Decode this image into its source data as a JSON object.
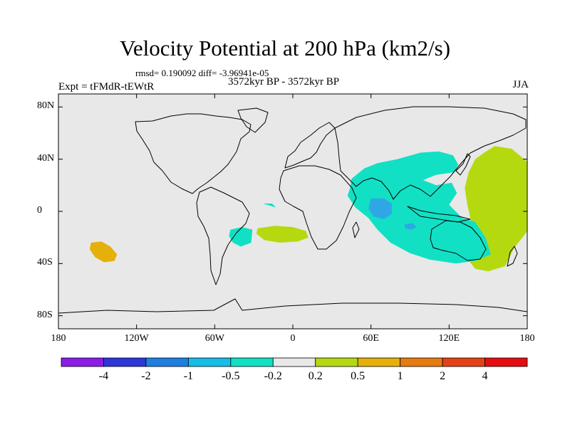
{
  "chart_data": {
    "type": "heatmap",
    "title": "Velocity Potential at 200 hPa (km2/s)",
    "stats_text": "rmsd= 0.190092 diff= -3.96941e-05",
    "period": "3572kyr BP - 3572kyr BP",
    "experiment": "Expt = tFMdR-tEWtR",
    "season": "JJA",
    "x_ticks": [
      "180",
      "120W",
      "60W",
      "0",
      "60E",
      "120E",
      "180"
    ],
    "x_tick_values": [
      -180,
      -120,
      -60,
      0,
      60,
      120,
      180
    ],
    "y_ticks": [
      "80N",
      "40N",
      "0",
      "40S",
      "80S"
    ],
    "y_tick_values": [
      80,
      40,
      0,
      -40,
      -80
    ],
    "xlim": [
      -180,
      180
    ],
    "ylim": [
      -90,
      90
    ],
    "colorbar": {
      "boundaries": [
        "-4",
        "-2",
        "-1",
        "-0.5",
        "-0.2",
        "0.2",
        "0.5",
        "1",
        "2",
        "4"
      ],
      "colors": [
        "#8b1de6",
        "#2e35d9",
        "#1f7fe0",
        "#16bde6",
        "#12e0c4",
        "#e8e8e8",
        "#b5d90f",
        "#e6b00a",
        "#e67b10",
        "#e64016",
        "#e60d10"
      ]
    },
    "regions": [
      {
        "name": "western-pacific-positive",
        "level": "0.2 to 0.5",
        "polygon": [
          [
            180,
            38
          ],
          [
            168,
            48
          ],
          [
            155,
            50
          ],
          [
            147,
            45
          ],
          [
            140,
            40
          ],
          [
            135,
            30
          ],
          [
            132,
            18
          ],
          [
            134,
            5
          ],
          [
            137,
            -8
          ],
          [
            135,
            -20
          ],
          [
            133,
            -35
          ],
          [
            140,
            -44
          ],
          [
            150,
            -46
          ],
          [
            163,
            -42
          ],
          [
            170,
            -28
          ],
          [
            178,
            -18
          ],
          [
            180,
            -15
          ]
        ]
      },
      {
        "name": "pacific-orange-center",
        "level": "0.5 to 1",
        "polygon": [
          [
            -155,
            -24
          ],
          [
            -147,
            -23
          ],
          [
            -140,
            -27
          ],
          [
            -135,
            -33
          ],
          [
            -137,
            -38
          ],
          [
            -145,
            -39
          ],
          [
            -152,
            -35
          ],
          [
            -156,
            -29
          ]
        ]
      },
      {
        "name": "eastern-dateline-positive",
        "level": "0.2 to 0.5",
        "polygon": [
          [
            177,
            34
          ],
          [
            180,
            35
          ],
          [
            180,
            15
          ],
          [
            177,
            18
          ],
          [
            176,
            26
          ]
        ]
      },
      {
        "name": "asia-indian-ocean-negative",
        "level": "-0.5 to -0.2",
        "polygon": [
          [
            45,
            25
          ],
          [
            55,
            33
          ],
          [
            65,
            37
          ],
          [
            80,
            40
          ],
          [
            98,
            45
          ],
          [
            112,
            46
          ],
          [
            123,
            43
          ],
          [
            127,
            36
          ],
          [
            124,
            30
          ],
          [
            110,
            28
          ],
          [
            100,
            24
          ],
          [
            110,
            20
          ],
          [
            122,
            22
          ],
          [
            126,
            14
          ],
          [
            120,
            5
          ],
          [
            130,
            -5
          ],
          [
            140,
            -8
          ],
          [
            148,
            -20
          ],
          [
            152,
            -33
          ],
          [
            140,
            -38
          ],
          [
            125,
            -40
          ],
          [
            105,
            -37
          ],
          [
            90,
            -32
          ],
          [
            75,
            -24
          ],
          [
            65,
            -14
          ],
          [
            58,
            -5
          ],
          [
            48,
            3
          ],
          [
            42,
            12
          ],
          [
            44,
            18
          ]
        ]
      },
      {
        "name": "arabian-sea-core",
        "level": "-1 to -0.5",
        "polygon": [
          [
            60,
            10
          ],
          [
            70,
            10
          ],
          [
            76,
            6
          ],
          [
            76,
            -2
          ],
          [
            70,
            -6
          ],
          [
            62,
            -4
          ],
          [
            58,
            2
          ]
        ]
      },
      {
        "name": "indian-ocean-core",
        "level": "-1 to -0.5",
        "polygon": [
          [
            86,
            -10
          ],
          [
            92,
            -9
          ],
          [
            95,
            -12
          ],
          [
            91,
            -14
          ],
          [
            86,
            -13
          ]
        ]
      },
      {
        "name": "atlantic-negative-north",
        "level": "-0.5 to -0.2",
        "polygon": [
          [
            -23,
            6
          ],
          [
            -16,
            6
          ],
          [
            -13,
            3
          ],
          -16
        ]
      },
      {
        "name": "atlantic-negative-south",
        "level": "-0.5 to -0.2",
        "polygon": [
          [
            -48,
            -14
          ],
          [
            -39,
            -12
          ],
          [
            -31,
            -14
          ],
          [
            -32,
            -24
          ],
          [
            -40,
            -27
          ],
          [
            -46,
            -24
          ],
          [
            -49,
            -19
          ]
        ]
      },
      {
        "name": "south-atlantic-positive",
        "level": "0.2 to 0.5",
        "polygon": [
          [
            -27,
            -13
          ],
          [
            -14,
            -11
          ],
          [
            0,
            -12
          ],
          [
            10,
            -15
          ],
          [
            12,
            -20
          ],
          [
            4,
            -23
          ],
          [
            -10,
            -24
          ],
          [
            -22,
            -22
          ],
          [
            -28,
            -17
          ]
        ]
      }
    ]
  }
}
